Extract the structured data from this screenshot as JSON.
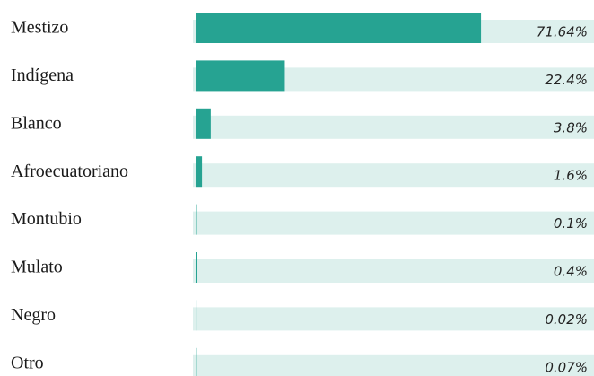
{
  "chart_data": {
    "type": "bar",
    "orientation": "horizontal",
    "categories": [
      "Mestizo",
      "Indígena",
      "Blanco",
      "Afroecuatoriano",
      "Montubio",
      "Mulato",
      "Negro",
      "Otro"
    ],
    "values": [
      71.64,
      22.4,
      3.8,
      1.6,
      0.1,
      0.4,
      0.02,
      0.07
    ],
    "value_labels": [
      "71.64%",
      "22.4%",
      "3.8%",
      "1.6%",
      "0.1%",
      "0.4%",
      "0.02%",
      "0.07%"
    ],
    "xlim": [
      0,
      100
    ],
    "color": "#26a392",
    "track_color": "#ddf0ed"
  }
}
